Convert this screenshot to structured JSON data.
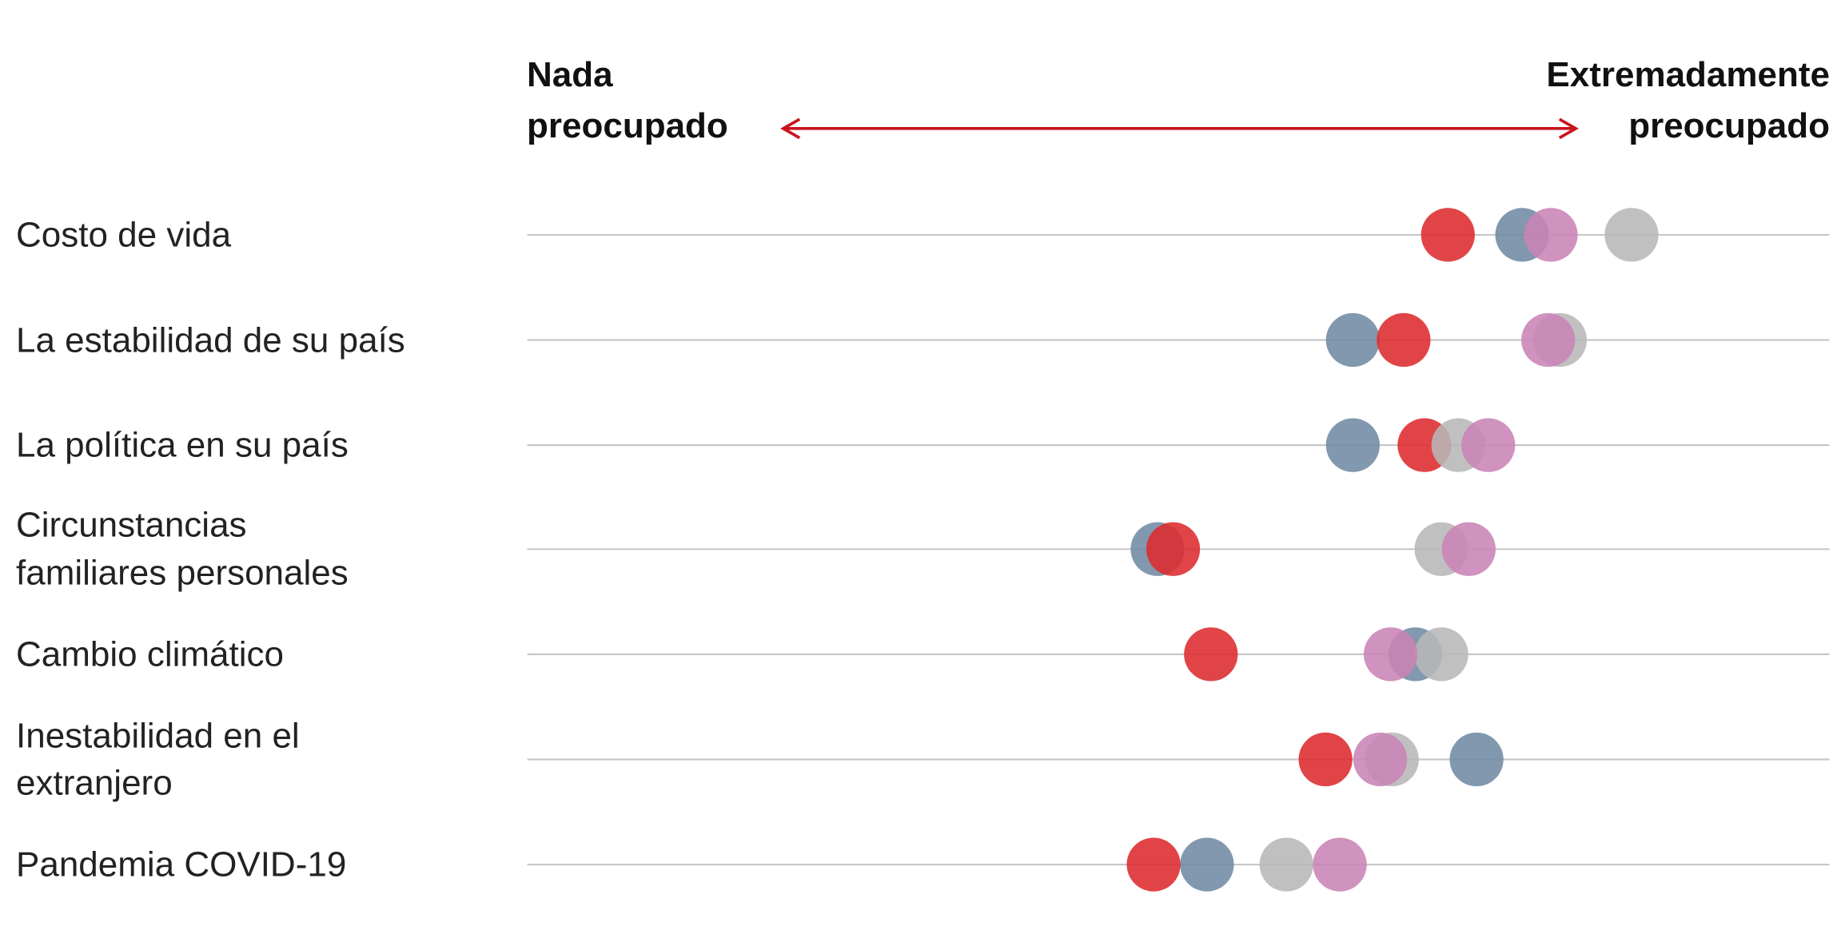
{
  "chart_data": {
    "type": "dot",
    "left_label": [
      "Nada",
      "preocupado"
    ],
    "right_label": [
      "Extremadamente",
      "preocupado"
    ],
    "categories": [
      "Costo de vida",
      "La estabilidad de su país",
      "La política en su país",
      "Circunstancias\nfamiliares personales",
      "Cambio climático",
      "Inestabilidad en el\nextranjero",
      "Pandemia COVID-19"
    ],
    "xlim": [
      0,
      100
    ],
    "series": [
      {
        "color": "#6f8aa3",
        "values": [
          76.4,
          63.4,
          63.4,
          48.4,
          68.2,
          72.9,
          52.2
        ]
      },
      {
        "color": "#dd2a2e",
        "values": [
          70.7,
          67.3,
          68.9,
          49.6,
          52.5,
          61.3,
          48.1
        ]
      },
      {
        "color": "#b7b7b7",
        "values": [
          84.8,
          79.3,
          71.5,
          70.2,
          70.2,
          66.4,
          58.3
        ]
      },
      {
        "color": "#c983b5",
        "values": [
          78.6,
          78.4,
          73.8,
          72.3,
          66.3,
          65.5,
          62.4
        ]
      }
    ]
  }
}
